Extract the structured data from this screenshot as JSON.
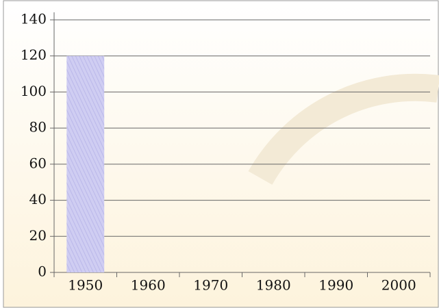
{
  "chart_data": {
    "type": "bar",
    "categories": [
      "1950",
      "1960",
      "1970",
      "1980",
      "1990",
      "2000"
    ],
    "values": [
      120,
      0,
      0,
      0,
      0,
      0
    ],
    "color": "#c9c8ef",
    "ylim": [
      0,
      140
    ],
    "yticks": [
      0,
      20,
      40,
      60,
      80,
      100,
      120,
      140
    ],
    "grid": true
  }
}
